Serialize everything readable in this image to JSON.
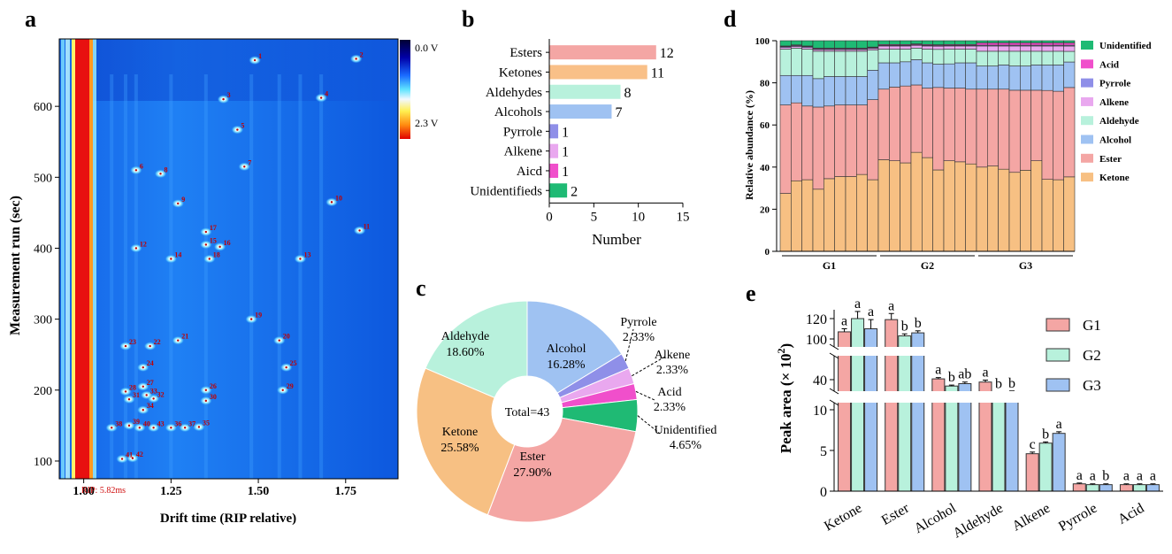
{
  "panels": {
    "a": {
      "label": "a",
      "xlabel": "Drift time (RIP relative)",
      "ylabel": "Measurement run (sec)",
      "xticks": [
        "1.00",
        "1.25",
        "1.50",
        "1.75"
      ],
      "yticks": [
        "100",
        "200",
        "300",
        "400",
        "500",
        "600"
      ],
      "rip_note": "RIP: 5.82ms",
      "colorbar": {
        "top": "0.0 V",
        "bottom": "2.3 V"
      },
      "peak_labels": [
        "1",
        "2",
        "3",
        "4",
        "5",
        "6",
        "7",
        "8",
        "9",
        "10",
        "11",
        "12",
        "13",
        "14",
        "15",
        "16",
        "17",
        "18",
        "19",
        "20",
        "21",
        "22",
        "23",
        "24",
        "25",
        "26",
        "27",
        "28",
        "29",
        "30",
        "31",
        "32",
        "33",
        "34",
        "35",
        "36",
        "37",
        "38",
        "39",
        "40",
        "41",
        "42",
        "43"
      ]
    },
    "b": {
      "label": "b",
      "xlabel": "Number",
      "xticks": [
        "0",
        "5",
        "10",
        "15"
      ]
    },
    "c": {
      "label": "c",
      "center": "Total=43"
    },
    "d": {
      "label": "d",
      "ylabel": "Relative abundance (%)",
      "yticks": [
        "0",
        "20",
        "40",
        "60",
        "80",
        "100"
      ],
      "groups": [
        "G1",
        "G2",
        "G3"
      ]
    },
    "e": {
      "label": "e",
      "ylabel_main": "Peak area (× 10",
      "ylabel_sup": "2",
      "ylabel_end": ")",
      "yticks": [
        "0",
        "5",
        "10",
        "40",
        "100",
        "120"
      ],
      "legend": [
        "G1",
        "G2",
        "G3"
      ]
    }
  },
  "colors": {
    "ketone": "#f7c083",
    "ester": "#f4a6a4",
    "alcohol": "#9fc2f2",
    "aldehyde": "#b8f1dc",
    "alkene": "#e9a8ef",
    "pyrrole": "#8f8fe8",
    "acid": "#f04fcb",
    "unidentified": "#1fba74",
    "bar_b": [
      "#f4a6a4",
      "#f9c088",
      "#b8f1dc",
      "#9fc2f2",
      "#8f8fe8",
      "#e9a8ef",
      "#f04fcb",
      "#1fba74"
    ],
    "e_groups": [
      "#f4a6a4",
      "#b8f1dc",
      "#9fc2f2"
    ]
  },
  "chart_data": [
    {
      "id": "a",
      "type": "heatmap",
      "title": "",
      "xlabel": "Drift time (RIP relative)",
      "ylabel": "Measurement run (sec)",
      "xlim": [
        0.93,
        1.9
      ],
      "ylim": [
        75,
        695
      ],
      "peaks": [
        {
          "id": "1",
          "x": 1.49,
          "y": 665
        },
        {
          "id": "2",
          "x": 1.78,
          "y": 667
        },
        {
          "id": "3",
          "x": 1.4,
          "y": 610
        },
        {
          "id": "4",
          "x": 1.68,
          "y": 612
        },
        {
          "id": "5",
          "x": 1.44,
          "y": 567
        },
        {
          "id": "6",
          "x": 1.15,
          "y": 510
        },
        {
          "id": "7",
          "x": 1.46,
          "y": 515
        },
        {
          "id": "8",
          "x": 1.22,
          "y": 505
        },
        {
          "id": "9",
          "x": 1.27,
          "y": 463
        },
        {
          "id": "10",
          "x": 1.71,
          "y": 465
        },
        {
          "id": "11",
          "x": 1.79,
          "y": 425
        },
        {
          "id": "12",
          "x": 1.15,
          "y": 400
        },
        {
          "id": "13",
          "x": 1.62,
          "y": 385
        },
        {
          "id": "14",
          "x": 1.25,
          "y": 385
        },
        {
          "id": "15",
          "x": 1.35,
          "y": 405
        },
        {
          "id": "16",
          "x": 1.39,
          "y": 402
        },
        {
          "id": "17",
          "x": 1.35,
          "y": 423
        },
        {
          "id": "18",
          "x": 1.36,
          "y": 385
        },
        {
          "id": "19",
          "x": 1.48,
          "y": 300
        },
        {
          "id": "20",
          "x": 1.56,
          "y": 270
        },
        {
          "id": "21",
          "x": 1.27,
          "y": 270
        },
        {
          "id": "22",
          "x": 1.19,
          "y": 262
        },
        {
          "id": "23",
          "x": 1.12,
          "y": 262
        },
        {
          "id": "24",
          "x": 1.17,
          "y": 232
        },
        {
          "id": "25",
          "x": 1.58,
          "y": 232
        },
        {
          "id": "26",
          "x": 1.35,
          "y": 200
        },
        {
          "id": "27",
          "x": 1.17,
          "y": 205
        },
        {
          "id": "28",
          "x": 1.12,
          "y": 198
        },
        {
          "id": "29",
          "x": 1.57,
          "y": 200
        },
        {
          "id": "30",
          "x": 1.35,
          "y": 185
        },
        {
          "id": "31",
          "x": 1.13,
          "y": 187
        },
        {
          "id": "32",
          "x": 1.2,
          "y": 188
        },
        {
          "id": "33",
          "x": 1.18,
          "y": 193
        },
        {
          "id": "34",
          "x": 1.17,
          "y": 172
        },
        {
          "id": "35",
          "x": 1.33,
          "y": 148
        },
        {
          "id": "36",
          "x": 1.25,
          "y": 147
        },
        {
          "id": "37",
          "x": 1.29,
          "y": 147
        },
        {
          "id": "38",
          "x": 1.08,
          "y": 147
        },
        {
          "id": "39",
          "x": 1.13,
          "y": 150
        },
        {
          "id": "40",
          "x": 1.16,
          "y": 147
        },
        {
          "id": "41",
          "x": 1.11,
          "y": 103
        },
        {
          "id": "42",
          "x": 1.14,
          "y": 104
        },
        {
          "id": "43",
          "x": 1.2,
          "y": 147
        }
      ]
    },
    {
      "id": "b",
      "type": "bar",
      "orientation": "horizontal",
      "categories": [
        "Esters",
        "Ketones",
        "Aldehydes",
        "Alcohols",
        "Pyrrole",
        "Alkene",
        "Aicd",
        "Unidentifieds"
      ],
      "values": [
        12,
        11,
        8,
        7,
        1,
        1,
        1,
        2
      ],
      "title": "",
      "xlabel": "Number",
      "ylabel": "",
      "xlim": [
        0,
        15
      ]
    },
    {
      "id": "c",
      "type": "pie",
      "donut": true,
      "labels": [
        "Alcohol",
        "Pyrrole",
        "Alkene",
        "Acid",
        "Unidentified",
        "Ester",
        "Ketone",
        "Aldehyde"
      ],
      "values": [
        16.28,
        2.33,
        2.33,
        2.33,
        4.65,
        27.9,
        25.58,
        18.6
      ],
      "display": [
        "16.28%",
        "2.33%",
        "2.33%",
        "2.33%",
        "4.65%",
        "27.90%",
        "25.58%",
        "18.60%"
      ],
      "center_text": "Total=43"
    },
    {
      "id": "d",
      "type": "bar",
      "stacked": true,
      "ylabel": "Relative abundance (%)",
      "xlabel": "",
      "ylim": [
        0,
        100
      ],
      "groups": [
        "G1",
        "G2",
        "G3"
      ],
      "bars_per_group": 9,
      "legend_position": "right",
      "legend": [
        "Unidentified",
        "Acid",
        "Pyrrole",
        "Alkene",
        "Aldehyde",
        "Alcohol",
        "Ester",
        "Ketone"
      ],
      "series": [
        {
          "name": "Ketone",
          "values": [
            27.5,
            33.5,
            34,
            29.5,
            34.5,
            35.5,
            35.5,
            36.5,
            34,
            43.5,
            43,
            42,
            47,
            44.5,
            38.5,
            43,
            42.5,
            41.5,
            40,
            40.5,
            39,
            37.5,
            38.5,
            43,
            34,
            34,
            35
          ]
        },
        {
          "name": "Ester",
          "values": [
            42,
            37,
            35,
            39,
            34.5,
            34,
            34,
            33,
            38,
            33.5,
            35,
            36.5,
            32,
            33,
            39,
            34.5,
            35,
            35.5,
            37,
            36.5,
            38,
            39,
            38,
            33.5,
            42,
            42,
            42
          ]
        },
        {
          "name": "Alcohol",
          "values": [
            14,
            13,
            14.5,
            13.5,
            14,
            13.5,
            13.5,
            13.5,
            14,
            12.5,
            11.5,
            11.5,
            12,
            12,
            11,
            11.5,
            12,
            12.5,
            11,
            11,
            11.5,
            11.5,
            11.5,
            12,
            12,
            12.5,
            12
          ]
        },
        {
          "name": "Aldehyde",
          "values": [
            12.5,
            13,
            12.5,
            13,
            12,
            12,
            12,
            12,
            9.5,
            6.5,
            6.5,
            6,
            5.5,
            6.5,
            7,
            7,
            6.5,
            6.5,
            7,
            7,
            6.5,
            7,
            7,
            6.5,
            6.5,
            6.5,
            5
          ]
        },
        {
          "name": "Alkene",
          "values": [
            0.8,
            0.8,
            0.8,
            0.8,
            0.8,
            0.8,
            0.8,
            0.8,
            0.8,
            1.5,
            1.5,
            1.5,
            1.3,
            1.5,
            1.5,
            1.5,
            1.5,
            1.5,
            2.5,
            2.5,
            2.5,
            2.5,
            2.5,
            2.5,
            2.5,
            2.5,
            2.5
          ]
        },
        {
          "name": "Pyrrole",
          "values": [
            0.4,
            0.4,
            0.4,
            0.4,
            0.4,
            0.4,
            0.4,
            0.4,
            0.4,
            0.3,
            0.3,
            0.3,
            0.3,
            0.3,
            0.3,
            0.3,
            0.3,
            0.3,
            0.4,
            0.4,
            0.4,
            0.4,
            0.4,
            0.4,
            0.4,
            0.4,
            0.4
          ]
        },
        {
          "name": "Acid",
          "values": [
            0.3,
            0.3,
            0.3,
            0.3,
            0.3,
            0.3,
            0.3,
            0.3,
            0.3,
            0.4,
            0.4,
            0.4,
            0.4,
            0.4,
            0.4,
            0.4,
            0.4,
            0.4,
            1.1,
            1.1,
            1.1,
            1.1,
            1.1,
            1.1,
            1.1,
            1.1,
            1.1
          ]
        },
        {
          "name": "Unidentified",
          "values": [
            2.5,
            2.0,
            2.5,
            3.5,
            3.5,
            3.5,
            3.5,
            3.5,
            3.0,
            1.8,
            1.8,
            1.8,
            1.5,
            1.8,
            1.9,
            1.8,
            1.8,
            1.8,
            1.0,
            1.0,
            1.0,
            1.0,
            1.0,
            1.0,
            1.0,
            1.0,
            1.0
          ]
        }
      ]
    },
    {
      "id": "e",
      "type": "bar",
      "grouped": true,
      "axis_break": true,
      "categories": [
        "Ketone",
        "Ester",
        "Alcohol",
        "Aldehyde",
        "Alkene",
        "Pyrrole",
        "Acid"
      ],
      "ylabel": "Peak area (× 10²)",
      "xlabel": "",
      "legend_position": "right",
      "series": [
        {
          "name": "G1",
          "values": [
            107,
            119,
            40.5,
            38.5,
            4.6,
            0.9,
            0.8
          ],
          "errors": [
            3,
            6,
            0.8,
            1.2,
            0.2,
            0.1,
            0.1
          ],
          "letters": [
            "a",
            "a",
            "a",
            "a",
            "c",
            "a",
            "a"
          ]
        },
        {
          "name": "G2",
          "values": [
            120,
            103,
            36,
            32,
            5.9,
            0.8,
            0.8
          ],
          "errors": [
            7,
            2,
            0.6,
            0.4,
            0.15,
            0.1,
            0.1
          ],
          "letters": [
            "a",
            "b",
            "b",
            "b",
            "b",
            "a",
            "a"
          ]
        },
        {
          "name": "G3",
          "values": [
            110,
            106,
            37.5,
            32.5,
            7.1,
            0.8,
            0.8
          ],
          "errors": [
            9,
            2,
            1,
            0.4,
            0.2,
            0.1,
            0.1
          ],
          "letters": [
            "a",
            "b",
            "ab",
            "b",
            "a",
            "b",
            "a"
          ]
        }
      ]
    }
  ]
}
